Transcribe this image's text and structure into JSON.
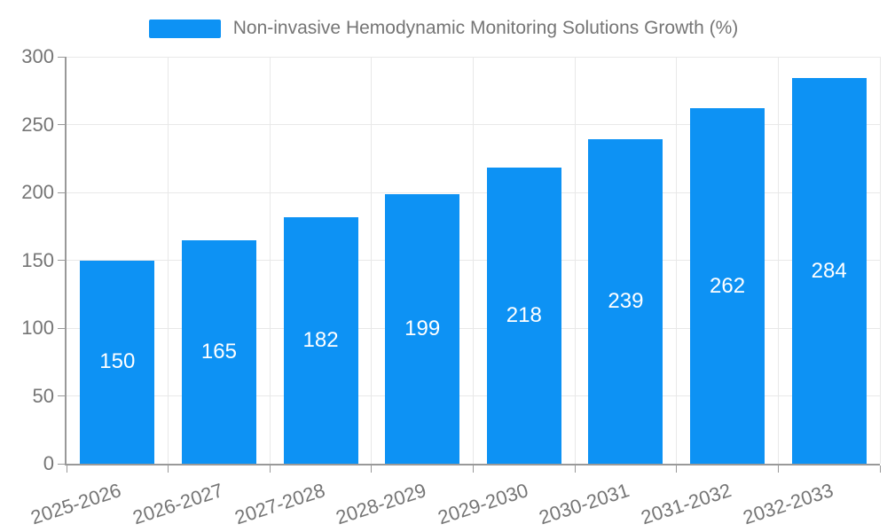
{
  "chart_data": {
    "type": "bar",
    "title": "Non-invasive Hemodynamic Monitoring Solutions Growth (%)",
    "categories": [
      "2025-2026",
      "2026-2027",
      "2027-2028",
      "2028-2029",
      "2029-2030",
      "2030-2031",
      "2031-2032",
      "2032-2033"
    ],
    "values": [
      150,
      165,
      182,
      199,
      218,
      239,
      262,
      284
    ],
    "value_labels": [
      "150",
      "165",
      "182",
      "199",
      "218",
      "239",
      "262",
      "284"
    ],
    "xlabel": "",
    "ylabel": "",
    "ylim": [
      0,
      300
    ],
    "yticks": [
      0,
      50,
      100,
      150,
      200,
      250,
      300
    ],
    "grid": true,
    "legend_position": "top-center",
    "value_label_position": "inside-center"
  },
  "legend": {
    "label": "Non-invasive Hemodynamic Monitoring Solutions Growth (%)"
  },
  "colors": {
    "bar": "#0d92f4",
    "axis": "#999999",
    "grid": "#e8e8e8",
    "tick_text": "#757575",
    "legend_text": "#757575",
    "value_label": "#ffffff",
    "background": "#ffffff"
  }
}
